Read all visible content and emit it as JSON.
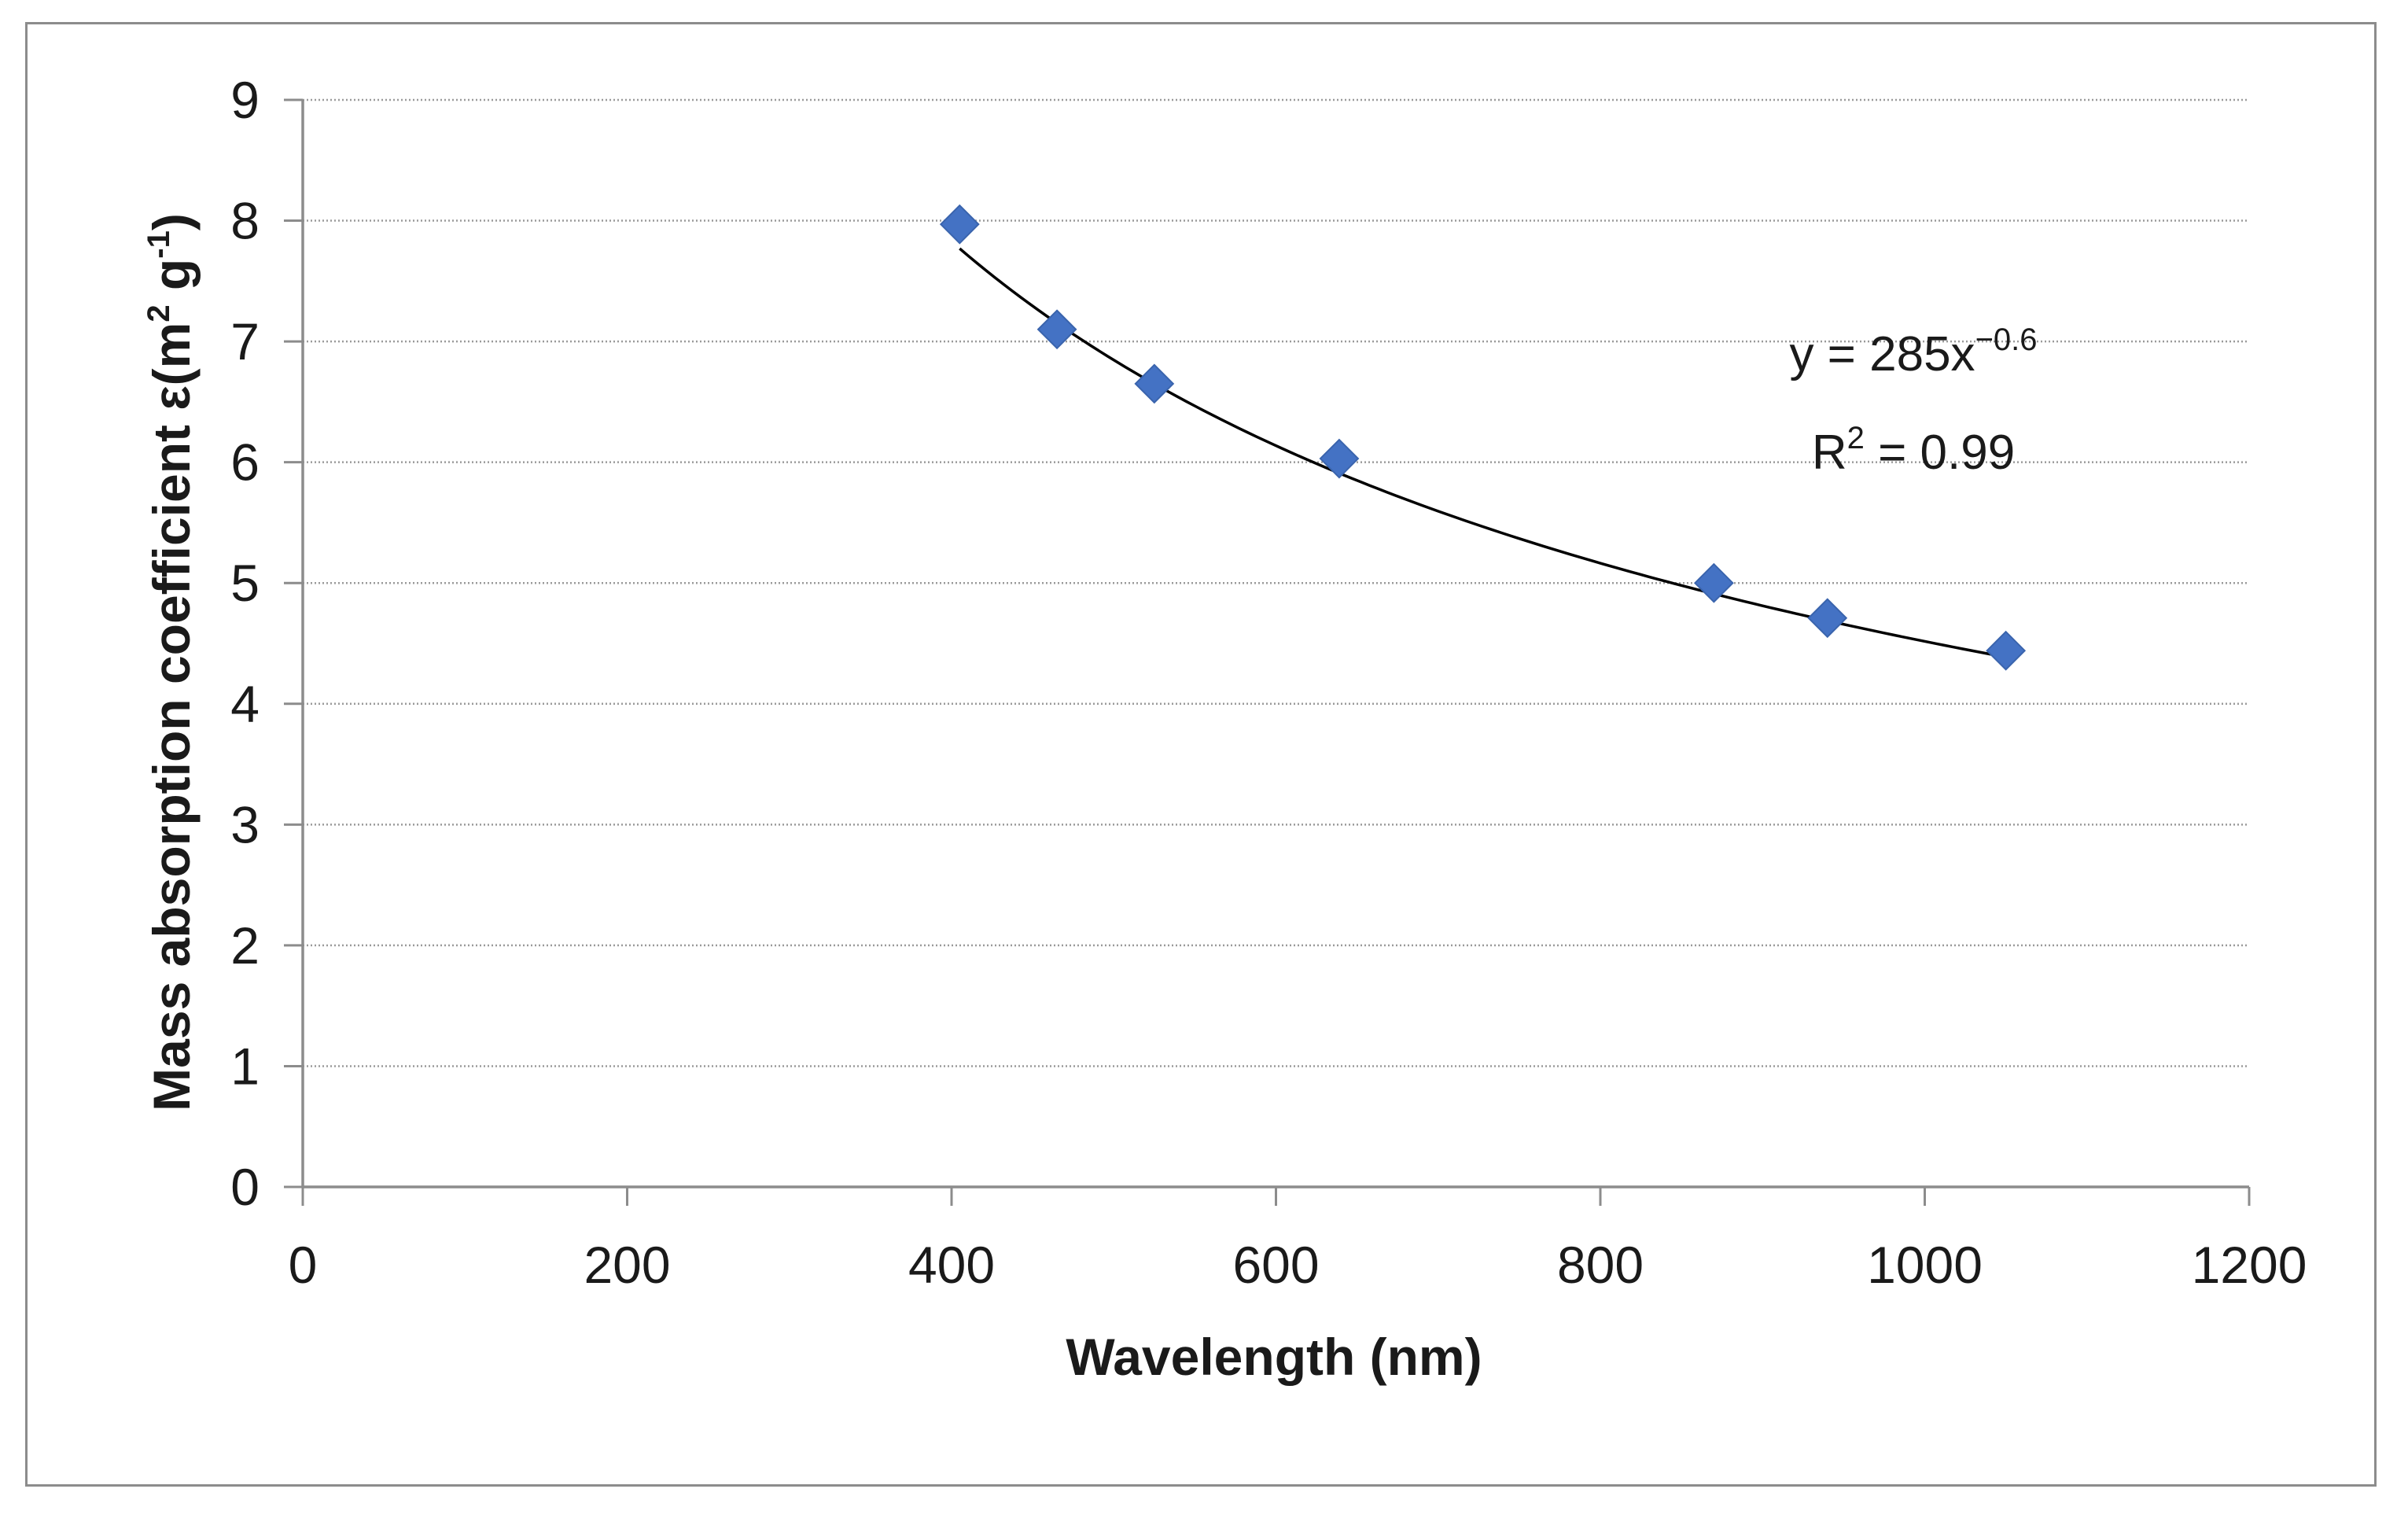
{
  "chart_data": {
    "type": "scatter",
    "title": "",
    "xlabel": "Wavelength (nm)",
    "ylabel_parts": {
      "base": "Mass absorption coefficient ε(m",
      "sup1": "2",
      "mid": " g",
      "sup2": "-1",
      "end": ")"
    },
    "xlim": [
      0,
      1200
    ],
    "ylim": [
      0,
      9
    ],
    "xticks": [
      0,
      200,
      400,
      600,
      800,
      1000,
      1200
    ],
    "yticks": [
      0,
      1,
      2,
      3,
      4,
      5,
      6,
      7,
      8,
      9
    ],
    "grid": "horizontal-dotted",
    "series": [
      {
        "name": "Mass absorption coefficient",
        "marker": "diamond",
        "color": "#4472C4",
        "x": [
          405,
          465,
          525,
          639,
          870,
          940,
          1050
        ],
        "y": [
          7.97,
          7.1,
          6.65,
          6.03,
          5.0,
          4.71,
          4.44
        ]
      }
    ],
    "trendline": {
      "type": "power",
      "a": 285,
      "b": -0.6,
      "x_range": [
        405,
        1050
      ],
      "color": "#000000"
    },
    "annotation": {
      "equation_base": "y = 285x",
      "equation_exp": "−0.6",
      "r2_base": "R",
      "r2_sup": "2",
      "r2_rest": " = 0.99"
    }
  }
}
